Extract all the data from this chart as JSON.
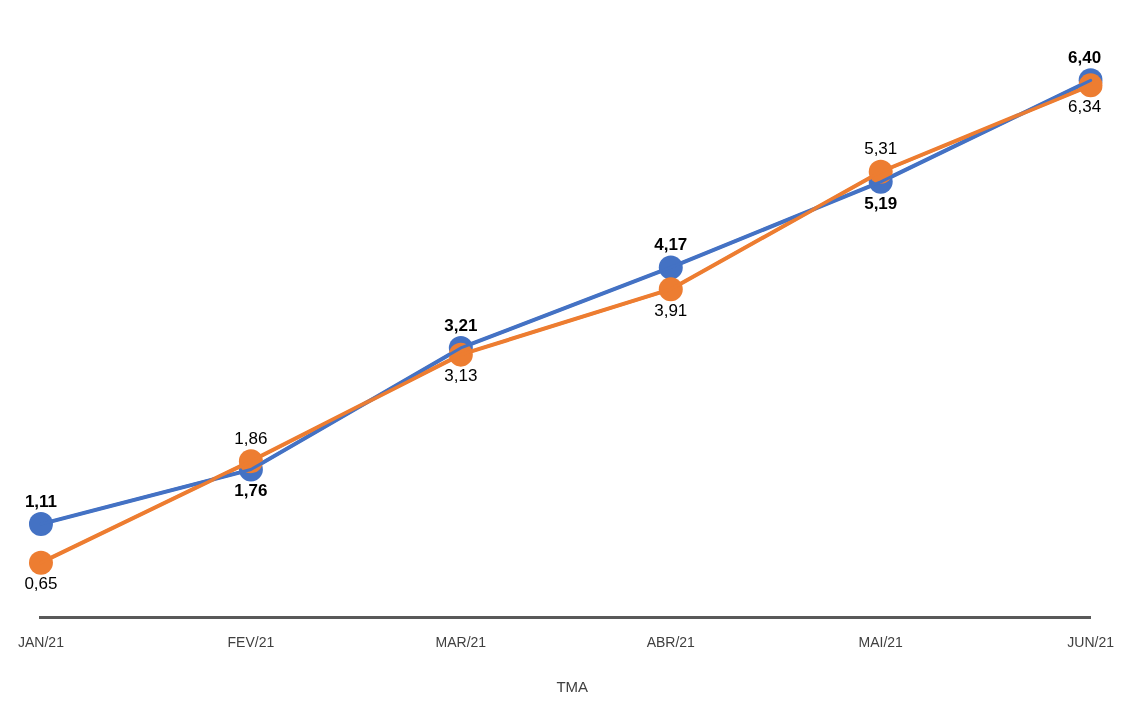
{
  "chart_data": {
    "type": "line",
    "categories": [
      "JAN/21",
      "FEV/21",
      "MAR/21",
      "ABR/21",
      "MAI/21",
      "JUN/21"
    ],
    "series": [
      {
        "color": "#4472c4",
        "values": [
          1.11,
          1.76,
          3.21,
          4.17,
          5.19,
          6.4
        ],
        "value_labels": [
          "1,11",
          "1,76",
          "3,21",
          "4,17",
          "5,19",
          "6,40"
        ]
      },
      {
        "name": "TMA",
        "color": "#ed7d31",
        "values": [
          0.65,
          1.86,
          3.13,
          3.91,
          5.31,
          6.34
        ],
        "value_labels": [
          "0,65",
          "1,86",
          "3,13",
          "3,91",
          "5,31",
          "6,34"
        ]
      }
    ],
    "tick_labels": "x",
    "grid": false,
    "legend": "bottom",
    "marker": "circle",
    "line_style": "solid"
  }
}
